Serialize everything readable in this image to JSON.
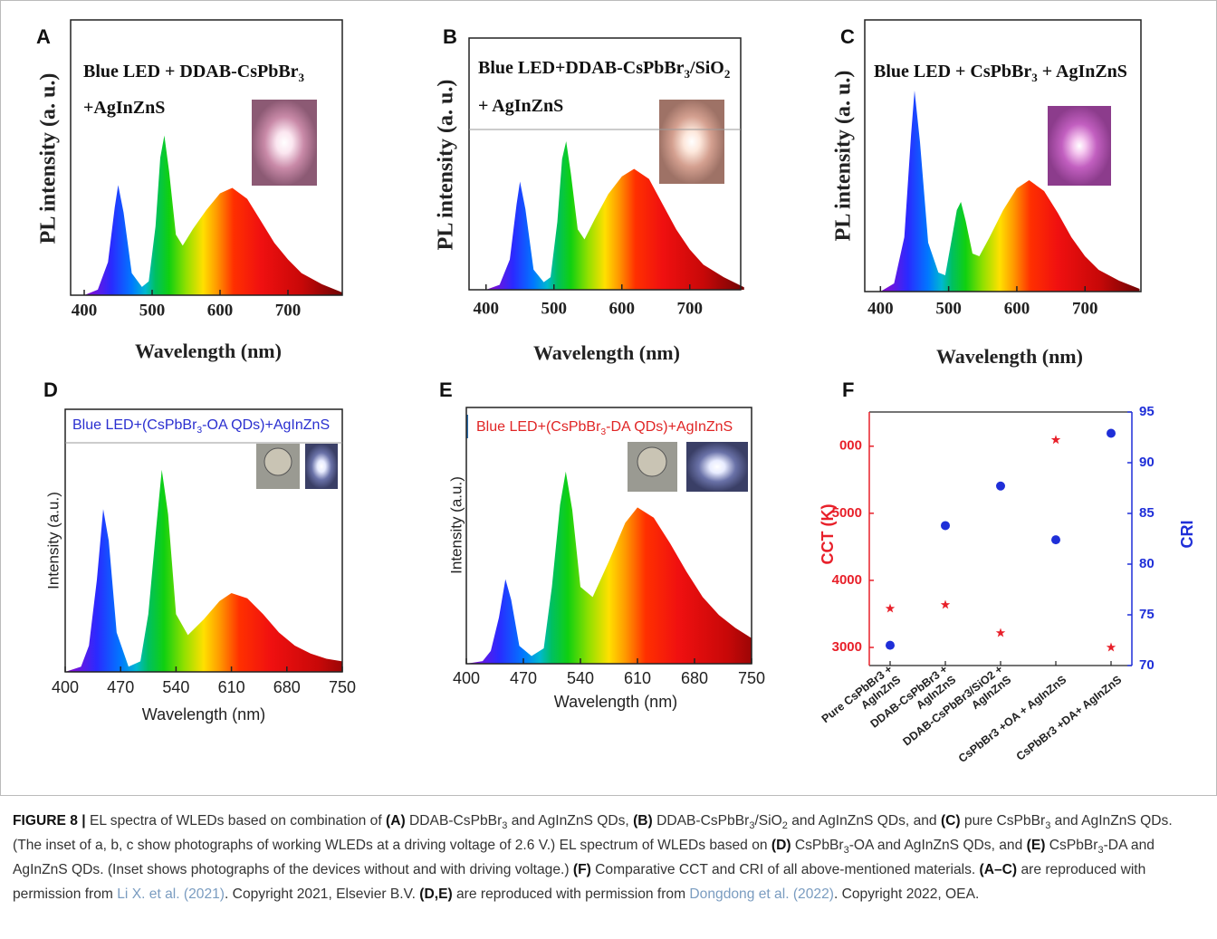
{
  "chart_data": [
    {
      "type": "area",
      "panel": "A",
      "title": [
        [
          {
            "text": "Blue LED + DDAB-CsPbBr"
          },
          {
            "text": "3",
            "sub": true
          }
        ],
        [
          {
            "text": "+AgInZnS"
          }
        ]
      ],
      "title_color": "#111",
      "xlabel": "Wavelength (nm)",
      "ylabel": "PL intensity (a. u.)",
      "x": [
        380,
        400,
        420,
        435,
        445,
        450,
        458,
        470,
        485,
        495,
        505,
        512,
        518,
        525,
        535,
        545,
        560,
        580,
        600,
        618,
        640,
        660,
        680,
        700,
        720,
        750,
        780
      ],
      "values": [
        0,
        0,
        0.02,
        0.12,
        0.32,
        0.4,
        0.3,
        0.08,
        0.03,
        0.05,
        0.25,
        0.5,
        0.58,
        0.45,
        0.22,
        0.18,
        0.24,
        0.31,
        0.37,
        0.39,
        0.35,
        0.27,
        0.19,
        0.13,
        0.08,
        0.04,
        0.01
      ],
      "xlim": [
        380,
        780
      ],
      "xticks": [
        400,
        500,
        600,
        700
      ],
      "ylim": [
        0,
        1
      ]
    },
    {
      "type": "area",
      "panel": "B",
      "title": [
        [
          {
            "text": "Blue LED+DDAB-CsPbBr"
          },
          {
            "text": "3",
            "sub": true
          },
          {
            "text": "/SiO"
          },
          {
            "text": "2",
            "sub": true
          }
        ],
        [
          {
            "text": "+ AgInZnS"
          }
        ]
      ],
      "title_color": "#111",
      "xlabel": "Wavelength (nm)",
      "ylabel": "PL intensity (a. u.)",
      "x": [
        380,
        400,
        420,
        435,
        445,
        450,
        458,
        470,
        485,
        495,
        505,
        512,
        518,
        525,
        535,
        545,
        560,
        580,
        600,
        618,
        640,
        660,
        680,
        700,
        720,
        750,
        780
      ],
      "values": [
        0,
        0,
        0.02,
        0.12,
        0.34,
        0.43,
        0.32,
        0.08,
        0.03,
        0.05,
        0.27,
        0.52,
        0.59,
        0.46,
        0.24,
        0.2,
        0.28,
        0.38,
        0.45,
        0.48,
        0.44,
        0.34,
        0.24,
        0.16,
        0.1,
        0.05,
        0.01
      ],
      "xlim": [
        375,
        775
      ],
      "xticks": [
        400,
        500,
        600,
        700
      ],
      "ylim": [
        0,
        1
      ]
    },
    {
      "type": "area",
      "panel": "C",
      "title": [
        [
          {
            "text": "Blue LED + CsPbBr"
          },
          {
            "text": "3",
            "sub": true
          },
          {
            "text": " + AgInZnS"
          }
        ]
      ],
      "title_color": "#111",
      "xlabel": "Wavelength (nm)",
      "ylabel": "PL intensity (a. u.)",
      "x": [
        380,
        400,
        420,
        435,
        445,
        450,
        458,
        470,
        485,
        495,
        505,
        512,
        518,
        525,
        535,
        545,
        560,
        580,
        600,
        618,
        640,
        660,
        680,
        700,
        720,
        750,
        780
      ],
      "values": [
        0,
        0,
        0.03,
        0.2,
        0.58,
        0.74,
        0.55,
        0.18,
        0.07,
        0.06,
        0.2,
        0.3,
        0.33,
        0.26,
        0.14,
        0.13,
        0.2,
        0.3,
        0.38,
        0.41,
        0.37,
        0.29,
        0.2,
        0.13,
        0.08,
        0.04,
        0.01
      ],
      "xlim": [
        377,
        782
      ],
      "xticks": [
        400,
        500,
        600,
        700
      ],
      "ylim": [
        0,
        1
      ]
    },
    {
      "type": "area",
      "panel": "D",
      "title": [
        [
          {
            "text": "Blue LED+(CsPbBr"
          },
          {
            "text": "3",
            "sub": true
          },
          {
            "text": "-OA QDs)+AgInZnS"
          }
        ]
      ],
      "title_color": "#2a2fd0",
      "xlabel": "Wavelength (nm)",
      "ylabel": "Intensity (a.u.)",
      "x": [
        400,
        420,
        430,
        440,
        448,
        455,
        465,
        480,
        495,
        505,
        515,
        522,
        530,
        540,
        555,
        575,
        595,
        610,
        630,
        650,
        670,
        690,
        710,
        730,
        750
      ],
      "values": [
        0,
        0.02,
        0.1,
        0.35,
        0.62,
        0.5,
        0.15,
        0.02,
        0.04,
        0.22,
        0.55,
        0.77,
        0.6,
        0.22,
        0.14,
        0.2,
        0.27,
        0.3,
        0.28,
        0.22,
        0.15,
        0.1,
        0.07,
        0.05,
        0.04
      ],
      "xlim": [
        400,
        750
      ],
      "xticks": [
        400,
        470,
        540,
        610,
        680,
        750
      ],
      "ylim": [
        0,
        1
      ]
    },
    {
      "type": "area",
      "panel": "E",
      "title": [
        [
          {
            "text": "Blue LED+(CsPbBr"
          },
          {
            "text": "3",
            "sub": true
          },
          {
            "text": "-DA QDs)+AgInZnS"
          }
        ]
      ],
      "title_color": "#e02525",
      "xlabel": "Wavelength (nm)",
      "ylabel": "Intensity (a.u.)",
      "x": [
        400,
        420,
        430,
        440,
        448,
        455,
        465,
        480,
        495,
        505,
        515,
        522,
        530,
        540,
        555,
        575,
        595,
        610,
        630,
        650,
        670,
        690,
        710,
        730,
        750
      ],
      "values": [
        0,
        0.01,
        0.05,
        0.18,
        0.33,
        0.25,
        0.07,
        0.03,
        0.06,
        0.3,
        0.62,
        0.75,
        0.6,
        0.3,
        0.26,
        0.4,
        0.55,
        0.61,
        0.57,
        0.47,
        0.36,
        0.26,
        0.19,
        0.14,
        0.1
      ],
      "xlim": [
        400,
        750
      ],
      "xticks": [
        400,
        470,
        540,
        610,
        680,
        750
      ],
      "ylim": [
        0,
        1
      ]
    },
    {
      "type": "scatter",
      "panel": "F",
      "categories": [
        "Pure CsPbBr3 +\nAgInZnS",
        "DDAB-CsPbBr3 +\nAgInZnS",
        "DDAB-CsPbBr3/SiO2 +\nAgInZnS",
        "CsPbBr3 +OA + AgInZnS",
        "CsPbBr3 +DA+ AgInZnS"
      ],
      "ylabel": "CCT (K)",
      "y2label": "CRI",
      "series": [
        {
          "color": "#e8202a",
          "marker": "star",
          "values": [
            3580,
            3635,
            3216,
            6095,
            3000
          ]
        },
        {
          "color": "#1f2fd8",
          "marker": "circle",
          "axis": "y2",
          "values": [
            72,
            83.8,
            87.7,
            82.4,
            92.9
          ]
        }
      ],
      "ylim": [
        2730,
        6510
      ],
      "yticks": [
        3000,
        4000,
        5000,
        {
          "value": 6000,
          "label": "000"
        }
      ],
      "y2lim": [
        70,
        95
      ],
      "y2ticks": [
        70,
        75,
        80,
        85,
        90,
        95
      ]
    }
  ],
  "caption": [
    {
      "text": "FIGURE 8 |",
      "style": "b"
    },
    {
      "text": " EL spectra of WLEDs based on combination of "
    },
    {
      "text": "(A)",
      "style": "b"
    },
    {
      "text": " DDAB-CsPbBr"
    },
    {
      "text": "3",
      "style": "sub"
    },
    {
      "text": " and AgInZnS QDs, "
    },
    {
      "text": "(B)",
      "style": "b"
    },
    {
      "text": " DDAB-CsPbBr"
    },
    {
      "text": "3",
      "style": "sub"
    },
    {
      "text": "/SiO"
    },
    {
      "text": "2",
      "style": "sub"
    },
    {
      "text": " and AgInZnS QDs, and "
    },
    {
      "text": "(C)",
      "style": "b"
    },
    {
      "text": " pure CsPbBr"
    },
    {
      "text": "3",
      "style": "sub"
    },
    {
      "text": " and AgInZnS QDs. (The inset of a, b, c show photographs of working WLEDs at a driving voltage of 2.6 V.) EL spectrum of WLEDs based on "
    },
    {
      "text": "(D)",
      "style": "b"
    },
    {
      "text": " CsPbBr"
    },
    {
      "text": "3",
      "style": "sub"
    },
    {
      "text": "-OA and AgInZnS QDs, and "
    },
    {
      "text": "(E)",
      "style": "b"
    },
    {
      "text": " CsPbBr"
    },
    {
      "text": "3",
      "style": "sub"
    },
    {
      "text": "-DA and AgInZnS QDs. (Inset shows photographs of the devices without and with driving voltage.) "
    },
    {
      "text": "(F)",
      "style": "b"
    },
    {
      "text": " Comparative CCT and CRI of all above-mentioned materials. "
    },
    {
      "text": "(A–C)",
      "style": "b"
    },
    {
      "text": " are reproduced with permission from "
    },
    {
      "text": "Li X. et al. (2021)",
      "style": "link"
    },
    {
      "text": ". Copyright 2021, Elsevier B.V. "
    },
    {
      "text": "(D,E)",
      "style": "b"
    },
    {
      "text": " are reproduced with permission from "
    },
    {
      "text": "Dongdong et al. (2022)",
      "style": "link"
    },
    {
      "text": ". Copyright 2022, OEA."
    }
  ]
}
